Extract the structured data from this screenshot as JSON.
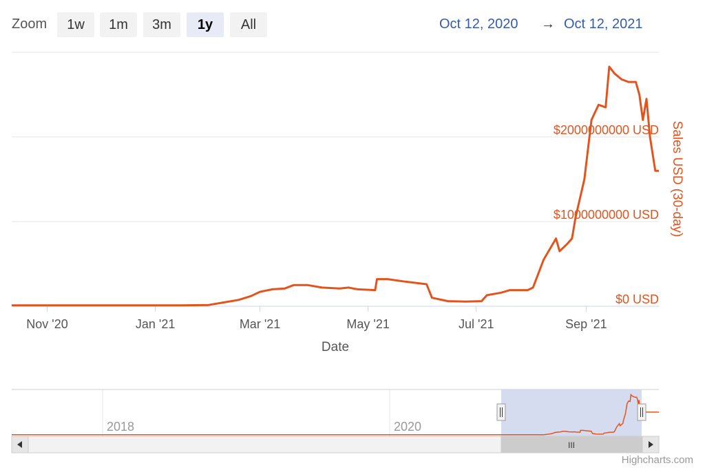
{
  "range_selector": {
    "zoom_label": "Zoom",
    "buttons": [
      {
        "label": "1w",
        "active": false
      },
      {
        "label": "1m",
        "active": false
      },
      {
        "label": "3m",
        "active": false
      },
      {
        "label": "1y",
        "active": true
      },
      {
        "label": "All",
        "active": false
      }
    ],
    "from": "Oct 12, 2020",
    "arrow": "→",
    "to": "Oct 12, 2021"
  },
  "credits": "Highcharts.com",
  "colors": {
    "series": "#e3541d",
    "axis_title": "#e3541d",
    "navigator_mask": "#cfd6ec",
    "button_active": "#e6ebf5"
  },
  "chart_data": {
    "type": "line",
    "xlabel": "Date",
    "ylabel": "Sales USD (30-day)",
    "ylim": [
      0,
      3000000000
    ],
    "yticks": [
      {
        "value": 0,
        "label": "$0 USD"
      },
      {
        "value": 1000000000,
        "label": "$1000000000 USD"
      },
      {
        "value": 2000000000,
        "label": "$2000000000 USD"
      }
    ],
    "xlim": [
      "2020-10-12",
      "2021-10-12"
    ],
    "xticks": [
      {
        "date": "2020-11-01",
        "label": "Nov '20"
      },
      {
        "date": "2021-01-01",
        "label": "Jan '21"
      },
      {
        "date": "2021-03-01",
        "label": "Mar '21"
      },
      {
        "date": "2021-05-01",
        "label": "May '21"
      },
      {
        "date": "2021-07-01",
        "label": "Jul '21"
      },
      {
        "date": "2021-09-01",
        "label": "Sep '21"
      }
    ],
    "series": [
      {
        "points": [
          [
            "2020-10-12",
            10000000
          ],
          [
            "2020-11-15",
            10000000
          ],
          [
            "2020-12-15",
            10000000
          ],
          [
            "2021-01-15",
            10000000
          ],
          [
            "2021-01-31",
            15000000
          ],
          [
            "2021-02-10",
            50000000
          ],
          [
            "2021-02-17",
            75000000
          ],
          [
            "2021-02-24",
            120000000
          ],
          [
            "2021-03-01",
            170000000
          ],
          [
            "2021-03-08",
            200000000
          ],
          [
            "2021-03-15",
            210000000
          ],
          [
            "2021-03-20",
            250000000
          ],
          [
            "2021-03-28",
            250000000
          ],
          [
            "2021-04-05",
            220000000
          ],
          [
            "2021-04-15",
            210000000
          ],
          [
            "2021-04-20",
            220000000
          ],
          [
            "2021-04-25",
            200000000
          ],
          [
            "2021-05-05",
            190000000
          ],
          [
            "2021-05-06",
            320000000
          ],
          [
            "2021-05-12",
            320000000
          ],
          [
            "2021-05-22",
            290000000
          ],
          [
            "2021-06-03",
            260000000
          ],
          [
            "2021-06-06",
            100000000
          ],
          [
            "2021-06-15",
            60000000
          ],
          [
            "2021-06-25",
            55000000
          ],
          [
            "2021-07-04",
            60000000
          ],
          [
            "2021-07-07",
            130000000
          ],
          [
            "2021-07-15",
            160000000
          ],
          [
            "2021-07-20",
            190000000
          ],
          [
            "2021-07-30",
            190000000
          ],
          [
            "2021-08-02",
            220000000
          ],
          [
            "2021-08-08",
            550000000
          ],
          [
            "2021-08-15",
            800000000
          ],
          [
            "2021-08-17",
            650000000
          ],
          [
            "2021-08-21",
            730000000
          ],
          [
            "2021-08-24",
            800000000
          ],
          [
            "2021-08-26",
            1050000000
          ],
          [
            "2021-08-31",
            1500000000
          ],
          [
            "2021-09-04",
            2200000000
          ],
          [
            "2021-09-08",
            2380000000
          ],
          [
            "2021-09-12",
            2350000000
          ],
          [
            "2021-09-14",
            2830000000
          ],
          [
            "2021-09-17",
            2750000000
          ],
          [
            "2021-09-21",
            2680000000
          ],
          [
            "2021-09-25",
            2650000000
          ],
          [
            "2021-09-29",
            2650000000
          ],
          [
            "2021-10-01",
            2500000000
          ],
          [
            "2021-10-03",
            2200000000
          ],
          [
            "2021-10-05",
            2450000000
          ],
          [
            "2021-10-07",
            2000000000
          ],
          [
            "2021-10-10",
            1600000000
          ],
          [
            "2021-10-12",
            1600000000
          ]
        ]
      }
    ],
    "navigator": {
      "labels": [
        "2018",
        "2020"
      ],
      "handle_grip": "III"
    }
  }
}
